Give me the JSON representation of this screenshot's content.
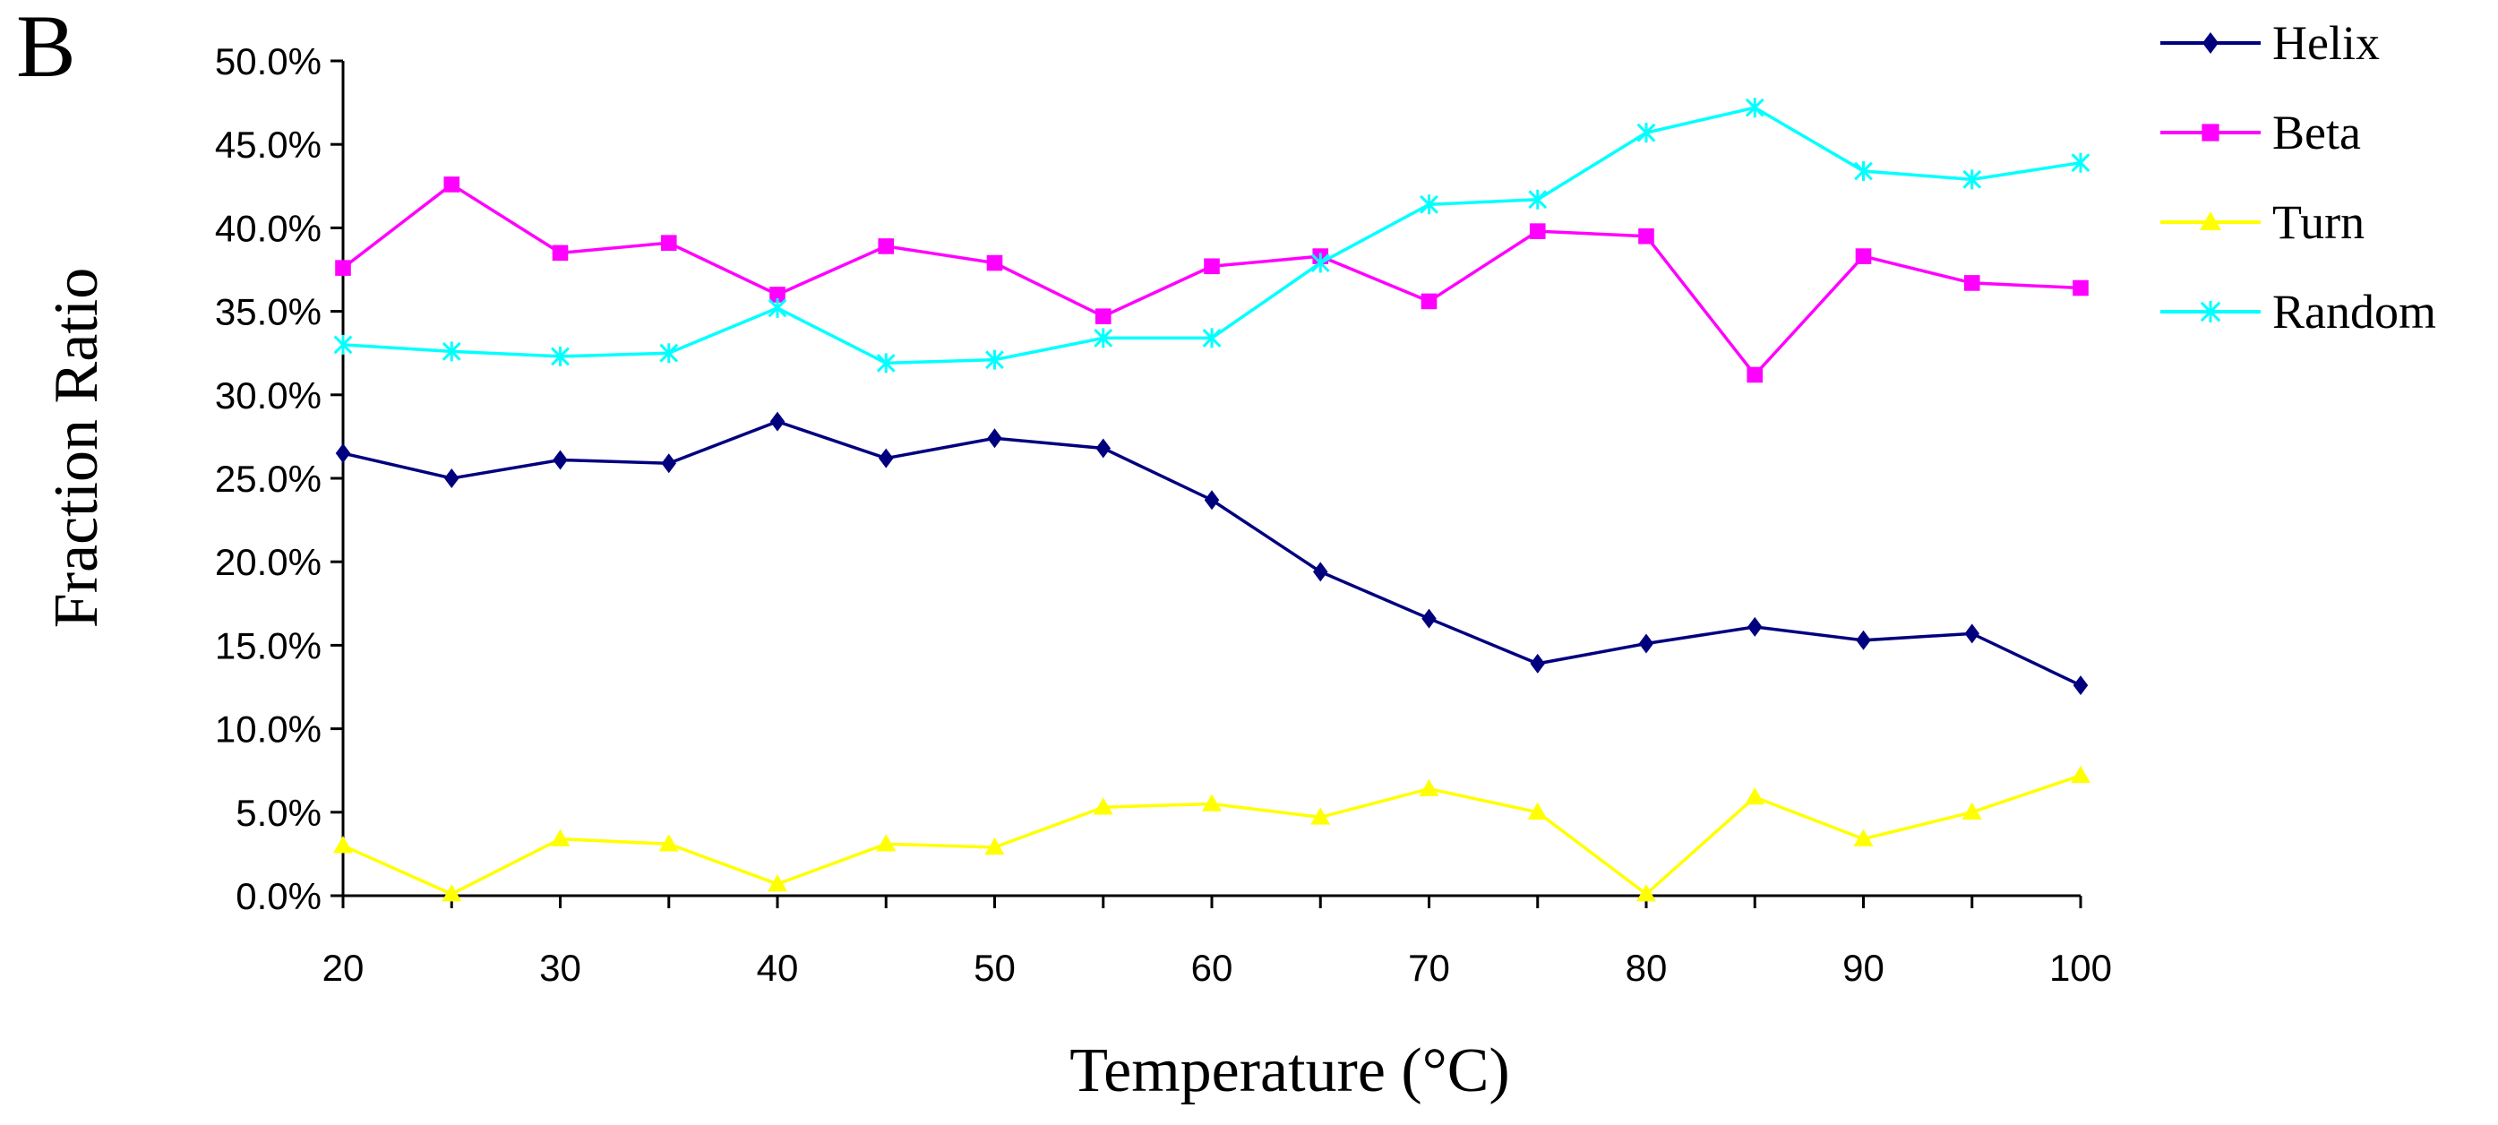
{
  "chart_data": {
    "type": "line",
    "panel_label": "B",
    "title": "",
    "xlabel": "Temperature (°C)",
    "ylabel": "Fraction Ratio",
    "x": [
      20,
      25,
      30,
      35,
      40,
      45,
      50,
      55,
      60,
      65,
      70,
      75,
      80,
      85,
      90,
      95,
      100
    ],
    "xticks": [
      "20",
      "30",
      "40",
      "50",
      "60",
      "70",
      "80",
      "90",
      "100"
    ],
    "xlim": [
      20,
      100
    ],
    "ylim": [
      0,
      50
    ],
    "yticks": [
      "0.0%",
      "5.0%",
      "10.0%",
      "15.0%",
      "20.0%",
      "25.0%",
      "30.0%",
      "35.0%",
      "40.0%",
      "45.0%",
      "50.0%"
    ],
    "grid": false,
    "legend_position": "top-right",
    "series": [
      {
        "name": "Helix",
        "color": "#00007f",
        "marker": "diamond",
        "values": [
          26.5,
          25.0,
          26.1,
          25.9,
          28.4,
          26.2,
          27.4,
          26.8,
          23.7,
          19.4,
          16.6,
          13.9,
          15.1,
          16.1,
          15.3,
          15.7,
          12.6
        ]
      },
      {
        "name": "Beta",
        "color": "#ff00ff",
        "marker": "square",
        "values": [
          37.6,
          42.6,
          38.5,
          39.1,
          36.0,
          38.9,
          37.9,
          34.7,
          37.7,
          38.3,
          35.6,
          39.8,
          39.5,
          31.2,
          38.3,
          36.7,
          36.4
        ]
      },
      {
        "name": "Turn",
        "color": "#ffff00",
        "marker": "triangle",
        "values": [
          3.0,
          0.1,
          3.4,
          3.1,
          0.7,
          3.1,
          2.9,
          5.3,
          5.5,
          4.7,
          6.4,
          5.0,
          0.1,
          5.9,
          3.4,
          5.0,
          7.2
        ]
      },
      {
        "name": "Random",
        "color": "#00ffff",
        "marker": "star",
        "values": [
          33.0,
          32.6,
          32.3,
          32.5,
          35.2,
          31.9,
          32.1,
          33.4,
          33.4,
          37.9,
          41.4,
          41.7,
          45.7,
          47.2,
          43.4,
          42.9,
          43.9
        ]
      }
    ]
  }
}
